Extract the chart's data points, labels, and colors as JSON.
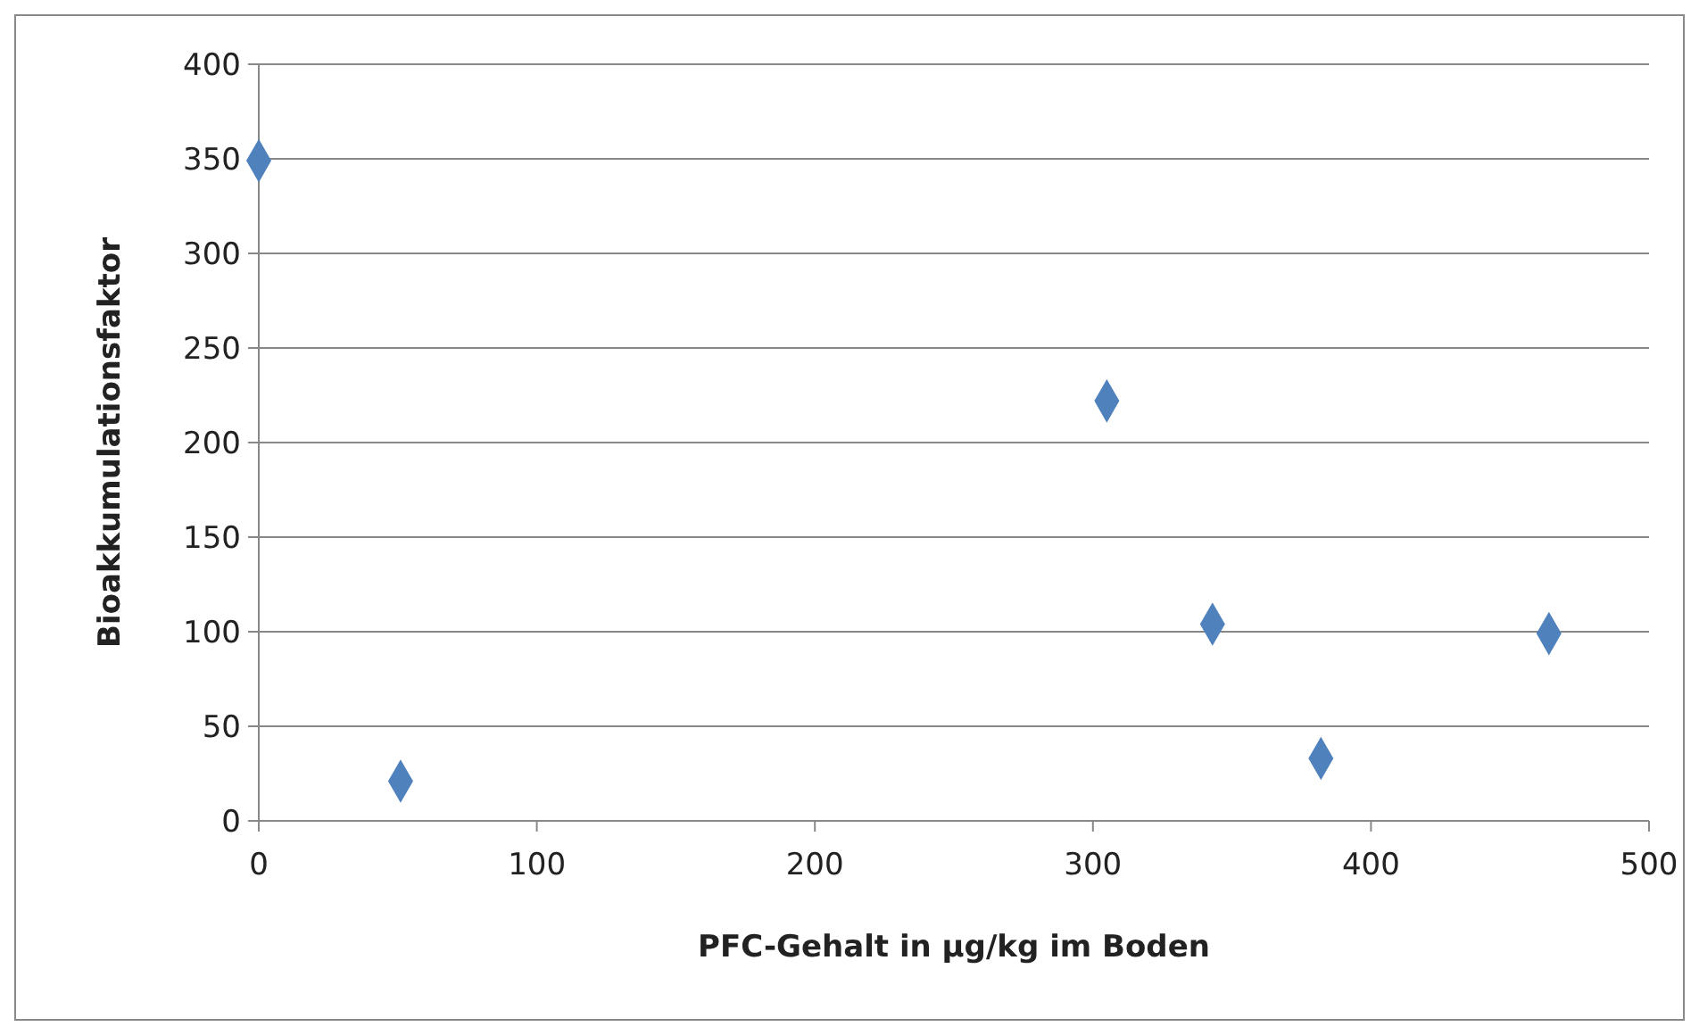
{
  "chart_data": {
    "type": "scatter",
    "xlabel": "PFC-Gehalt in µg/kg im Boden",
    "ylabel": "Bioakkumulationsfaktor",
    "x": [
      0,
      51,
      305,
      343,
      382,
      464
    ],
    "values": [
      349,
      21,
      222,
      104,
      33,
      99
    ],
    "color": "#4f81bd",
    "marker": "diamond",
    "xlim": [
      0,
      500
    ],
    "xticks": [
      0,
      100,
      200,
      300,
      400,
      500
    ],
    "ylim": [
      0,
      400
    ],
    "yticks": [
      0,
      50,
      100,
      150,
      200,
      250,
      300,
      350,
      400
    ],
    "grid": "y"
  }
}
